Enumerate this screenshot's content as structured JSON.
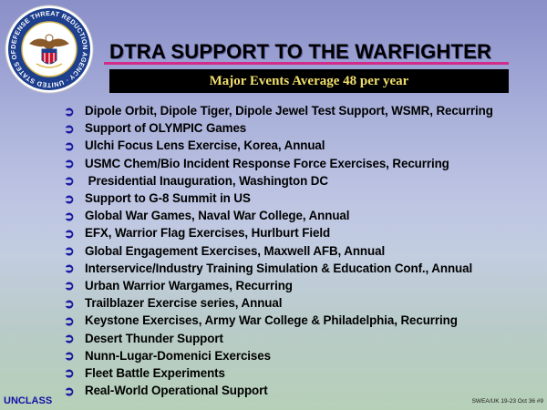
{
  "header": {
    "title": "DTRA SUPPORT TO THE WARFIGHTER",
    "banner": "Major Events Average 48  per year"
  },
  "seal": {
    "icon": "dtra-seal-icon",
    "ring_text": "DEFENSE THREAT REDUCTION AGENCY · UNITED STATES OF AMERICA"
  },
  "items": [
    "Dipole Orbit, Dipole Tiger, Dipole Jewel Test Support, WSMR, Recurring",
    "Support of OLYMPIC Games",
    "Ulchi Focus Lens Exercise, Korea, Annual",
    "USMC Chem/Bio Incident Response Force Exercises, Recurring",
    " Presidential Inauguration, Washington DC",
    "Support to G-8 Summit in US",
    "Global War Games, Naval War College, Annual",
    "EFX, Warrior Flag Exercises, Hurlburt Field",
    "Global Engagement Exercises, Maxwell AFB, Annual",
    "Interservice/Industry Training Simulation & Education Conf., Annual",
    "Urban Warrior Wargames, Recurring",
    "Trailblazer Exercise series, Annual",
    "Keystone Exercises, Army War College & Philadelphia, Recurring",
    "Desert Thunder Support",
    "Nunn-Lugar-Domenici Exercises",
    "Fleet Battle Experiments",
    "Real-World Operational Support"
  ],
  "bullet_glyph": "➲",
  "footer": {
    "classification": "UNCLASS",
    "reference": "SWEA/UK 19-23 Oct 36 #9"
  },
  "colors": {
    "rule": "#d42a8c",
    "banner_text": "#f0df6c",
    "bullet": "#1a1aa0",
    "classification": "#1010a8"
  }
}
